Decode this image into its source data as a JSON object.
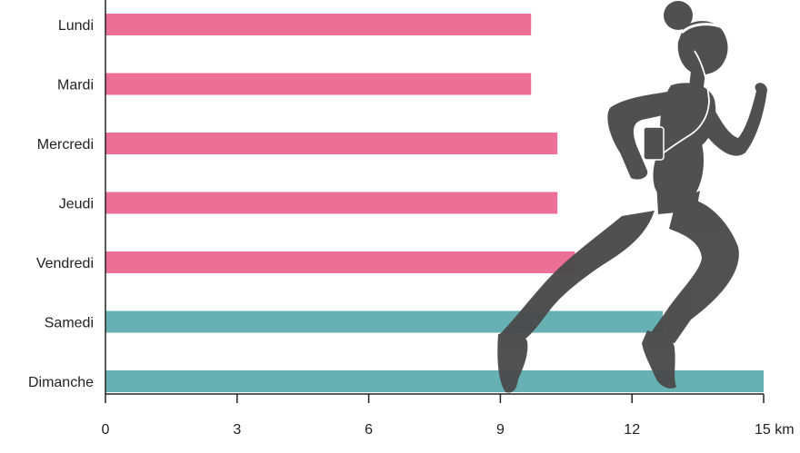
{
  "chart_data": {
    "type": "bar",
    "orientation": "horizontal",
    "categories": [
      "Lundi",
      "Mardi",
      "Mercredi",
      "Jeudi",
      "Vendredi",
      "Samedi",
      "Dimanche"
    ],
    "values": [
      9.7,
      9.7,
      10.3,
      10.3,
      10.7,
      12.7,
      15.0
    ],
    "xlim": [
      0,
      15
    ],
    "xticks": [
      0,
      3,
      6,
      9,
      12,
      15
    ],
    "tick_labels": [
      "0",
      "3",
      "6",
      "9",
      "12",
      "15 km"
    ],
    "colors": {
      "weekday": "#ec6f98",
      "weekend": "#67b1b4",
      "figure": "#4b4b4b"
    },
    "bar_colors": [
      "weekday",
      "weekday",
      "weekday",
      "weekday",
      "weekday",
      "weekend",
      "weekend"
    ],
    "grid": false,
    "legend": "none",
    "decoration": "running-woman-silhouette"
  }
}
